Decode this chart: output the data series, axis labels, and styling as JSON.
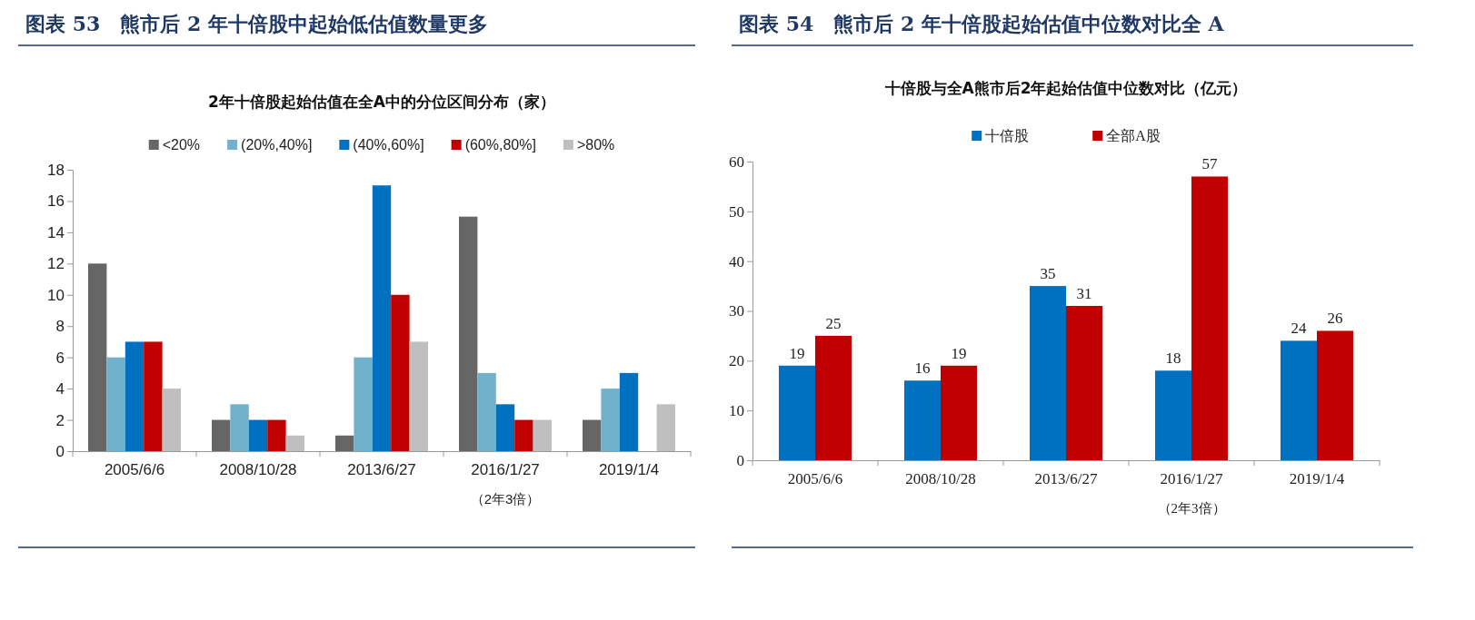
{
  "chart_data": [
    {
      "type": "bar",
      "title": "图表 53　熊市后 2 年十倍股中起始低估值数量更多",
      "subtitle": "2年十倍股起始估值在全A中的分位区间分布（家）",
      "categories": [
        "2005/6/6",
        "2008/10/28",
        "2013/6/27",
        "2016/1/27",
        "2019/1/4"
      ],
      "series": [
        {
          "name": "<20%",
          "color": "#666666",
          "values": [
            12,
            2,
            1,
            15,
            2
          ]
        },
        {
          "name": "(20%,40%]",
          "color": "#72b1cc",
          "values": [
            6,
            3,
            6,
            5,
            4
          ]
        },
        {
          "name": "(40%,60%]",
          "color": "#0070c0",
          "values": [
            7,
            2,
            17,
            3,
            5
          ]
        },
        {
          "name": "(60%,80%]",
          "color": "#c00000",
          "values": [
            7,
            2,
            10,
            2,
            0
          ]
        },
        {
          "name": ">80%",
          "color": "#bfbfbf",
          "values": [
            4,
            1,
            7,
            2,
            3
          ]
        }
      ],
      "ylim": [
        0,
        18
      ],
      "yticks": [
        0,
        2,
        4,
        6,
        8,
        10,
        12,
        14,
        16,
        18
      ],
      "legend": "top",
      "grid": false,
      "annotations": [
        "（2年3倍）"
      ]
    },
    {
      "type": "bar",
      "title": "图表 54　熊市后 2 年十倍股起始估值中位数对比全 A",
      "subtitle": "十倍股与全A熊市后2年起始估值中位数对比（亿元）",
      "categories": [
        "2005/6/6",
        "2008/10/28",
        "2013/6/27",
        "2016/1/27",
        "2019/1/4"
      ],
      "series": [
        {
          "name": "十倍股",
          "color": "#0070c0",
          "values": [
            19,
            16,
            35,
            18,
            24
          ]
        },
        {
          "name": "全部A股",
          "color": "#c00000",
          "values": [
            25,
            19,
            31,
            57,
            26
          ]
        }
      ],
      "ylim": [
        0,
        60
      ],
      "yticks": [
        0,
        10,
        20,
        30,
        40,
        50,
        60
      ],
      "legend": "top",
      "grid": false,
      "data_labels": true,
      "annotations": [
        "（2年3倍）"
      ]
    }
  ]
}
